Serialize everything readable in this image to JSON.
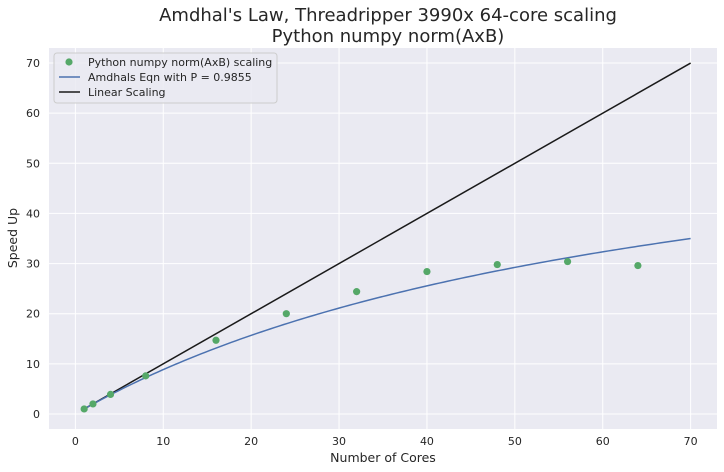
{
  "chart_data": {
    "type": "line",
    "title": "Amdhal's Law, Threadripper 3990x 64-core scaling",
    "subtitle": "Python numpy norm(AxB)",
    "xlabel": "Number of Cores",
    "ylabel": "Speed Up",
    "xlim": [
      -3,
      73
    ],
    "ylim": [
      -3,
      73
    ],
    "xticks": [
      0,
      10,
      20,
      30,
      40,
      50,
      60,
      70
    ],
    "yticks": [
      0,
      10,
      20,
      30,
      40,
      50,
      60,
      70
    ],
    "grid": true,
    "legend_position": "top-left",
    "background": "#eaeaf2",
    "series": [
      {
        "name": "Python numpy norm(AxB) scaling",
        "kind": "scatter",
        "color": "#55a868",
        "x": [
          1,
          2,
          4,
          8,
          16,
          24,
          32,
          40,
          48,
          56,
          64
        ],
        "y": [
          1.0,
          2.0,
          3.9,
          7.6,
          14.7,
          20.0,
          24.4,
          28.4,
          29.8,
          30.4,
          29.6
        ]
      },
      {
        "name": "Amdhals Eqn with P = 0.9855",
        "kind": "amdahl-curve",
        "color": "#4c72b0",
        "p": 0.9855,
        "x_range": [
          1,
          70
        ]
      },
      {
        "name": "Linear Scaling",
        "kind": "line",
        "color": "#1a1a1a",
        "x": [
          1,
          70
        ],
        "y": [
          1,
          70
        ]
      }
    ]
  }
}
